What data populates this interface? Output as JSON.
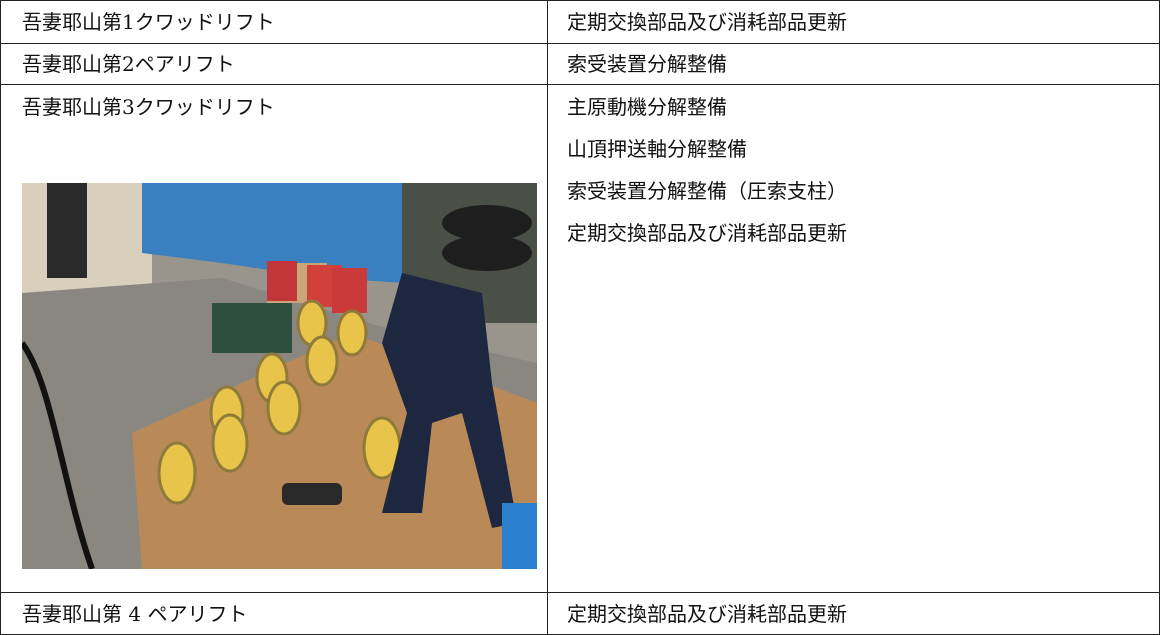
{
  "table": {
    "rows": [
      {
        "left": "吾妻耶山第1クワッドリフト",
        "right": [
          "定期交換部品及び消耗部品更新"
        ]
      },
      {
        "left": "吾妻耶山第2ペアリフト",
        "right": [
          "索受装置分解整備"
        ]
      },
      {
        "left": "吾妻耶山第3クワッドリフト",
        "right": [
          "主原動機分解整備",
          "山頂押送軸分解整備",
          "索受装置分解整備（圧索支柱）",
          "定期交換部品及び消耗部品更新"
        ]
      },
      {
        "left": "吾妻耶山第 4 ペアリフト",
        "right": [
          "定期交換部品及び消耗部品更新"
        ]
      }
    ]
  }
}
